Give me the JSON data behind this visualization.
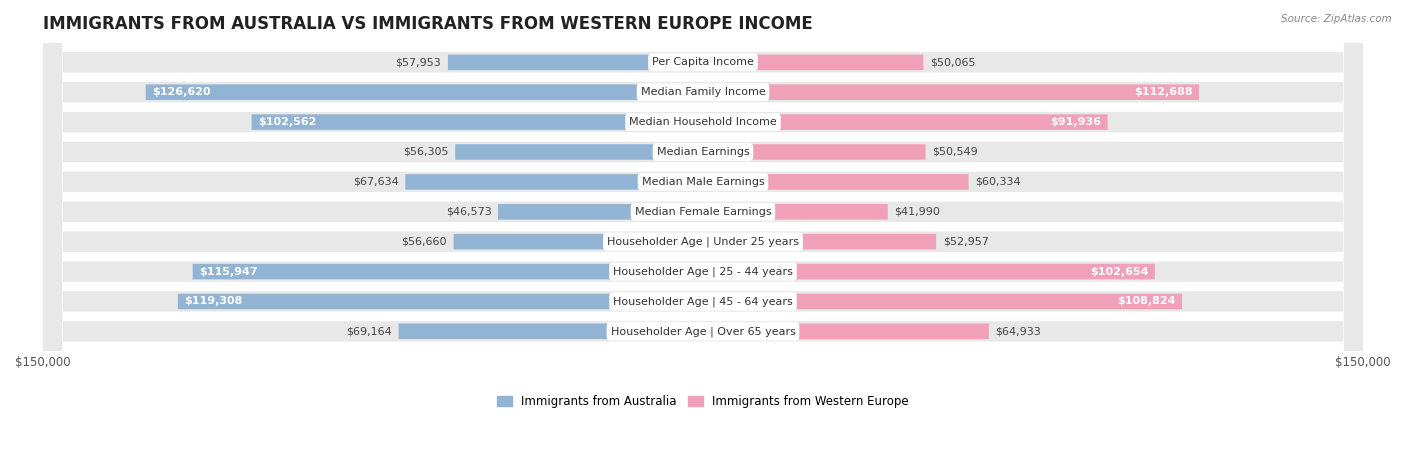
{
  "title": "IMMIGRANTS FROM AUSTRALIA VS IMMIGRANTS FROM WESTERN EUROPE INCOME",
  "source": "Source: ZipAtlas.com",
  "categories": [
    "Per Capita Income",
    "Median Family Income",
    "Median Household Income",
    "Median Earnings",
    "Median Male Earnings",
    "Median Female Earnings",
    "Householder Age | Under 25 years",
    "Householder Age | 25 - 44 years",
    "Householder Age | 45 - 64 years",
    "Householder Age | Over 65 years"
  ],
  "australia_values": [
    57953,
    126620,
    102562,
    56305,
    67634,
    46573,
    56660,
    115947,
    119308,
    69164
  ],
  "western_europe_values": [
    50065,
    112688,
    91936,
    50549,
    60334,
    41990,
    52957,
    102654,
    108824,
    64933
  ],
  "australia_color": "#92b4d4",
  "western_europe_color": "#f0a0b8",
  "australia_label": "Immigrants from Australia",
  "western_europe_label": "Immigrants from Western Europe",
  "max_value": 150000,
  "background_color": "#ffffff",
  "row_bg_color": "#e8e8e8",
  "title_fontsize": 12,
  "label_fontsize": 8,
  "tick_fontsize": 8.5,
  "legend_fontsize": 8.5,
  "source_fontsize": 7.5
}
